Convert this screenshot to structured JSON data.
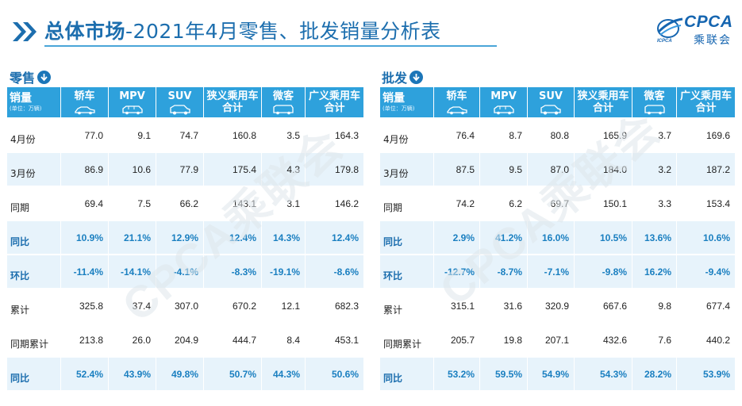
{
  "header": {
    "title_bold": "总体市场",
    "title_rest": "-2021年4月零售、批发销量分析表"
  },
  "logo": {
    "brand": "CPCA",
    "cn": "乘联会",
    "sub": "ICPCA"
  },
  "watermark": "CPCA乘联会",
  "tables": {
    "retail": {
      "label": "零售",
      "corner_title": "销量",
      "corner_unit": "(单位：万辆)",
      "columns": [
        "轿车",
        "MPV",
        "SUV",
        "狭义乘用车合计",
        "微客",
        "广义乘用车合计"
      ],
      "column_lines": [
        [
          "轿车"
        ],
        [
          "MPV"
        ],
        [
          "SUV"
        ],
        [
          "狭义乘用车",
          "合计"
        ],
        [
          "微客"
        ],
        [
          "广义乘用车",
          "合计"
        ]
      ],
      "rows": [
        {
          "label": "4月份",
          "values": [
            "77.0",
            "9.1",
            "74.7",
            "160.8",
            "3.5",
            "164.3"
          ]
        },
        {
          "label": "3月份",
          "values": [
            "86.9",
            "10.6",
            "77.9",
            "175.4",
            "4.3",
            "179.8"
          ]
        },
        {
          "label": "同期",
          "values": [
            "69.4",
            "7.5",
            "66.2",
            "143.1",
            "3.1",
            "146.2"
          ]
        },
        {
          "label": "同比",
          "values": [
            "10.9%",
            "21.1%",
            "12.9%",
            "12.4%",
            "14.3%",
            "12.4%"
          ]
        },
        {
          "label": "环比",
          "values": [
            "-11.4%",
            "-14.1%",
            "-4.1%",
            "-8.3%",
            "-19.1%",
            "-8.6%"
          ]
        },
        {
          "label": "累计",
          "values": [
            "325.8",
            "37.4",
            "307.0",
            "670.2",
            "12.1",
            "682.3"
          ]
        },
        {
          "label": "同期累计",
          "values": [
            "213.8",
            "26.0",
            "204.9",
            "444.7",
            "8.4",
            "453.1"
          ]
        },
        {
          "label": "同比",
          "values": [
            "52.4%",
            "43.9%",
            "49.8%",
            "50.7%",
            "44.3%",
            "50.6%"
          ]
        }
      ]
    },
    "wholesale": {
      "label": "批发",
      "corner_title": "销量",
      "corner_unit": "(单位：万辆)",
      "columns": [
        "轿车",
        "MPV",
        "SUV",
        "狭义乘用车合计",
        "微客",
        "广义乘用车合计"
      ],
      "column_lines": [
        [
          "轿车"
        ],
        [
          "MPV"
        ],
        [
          "SUV"
        ],
        [
          "狭义乘用车",
          "合计"
        ],
        [
          "微客"
        ],
        [
          "广义乘用车",
          "合计"
        ]
      ],
      "rows": [
        {
          "label": "4月份",
          "values": [
            "76.4",
            "8.7",
            "80.8",
            "165.9",
            "3.7",
            "169.6"
          ]
        },
        {
          "label": "3月份",
          "values": [
            "87.5",
            "9.5",
            "87.0",
            "184.0",
            "3.2",
            "187.2"
          ]
        },
        {
          "label": "同期",
          "values": [
            "74.2",
            "6.2",
            "69.7",
            "150.1",
            "3.3",
            "153.4"
          ]
        },
        {
          "label": "同比",
          "values": [
            "2.9%",
            "41.2%",
            "16.0%",
            "10.5%",
            "13.6%",
            "10.6%"
          ]
        },
        {
          "label": "环比",
          "values": [
            "-12.7%",
            "-8.7%",
            "-7.1%",
            "-9.8%",
            "16.2%",
            "-9.4%"
          ]
        },
        {
          "label": "累计",
          "values": [
            "315.1",
            "31.6",
            "320.9",
            "667.6",
            "9.8",
            "677.4"
          ]
        },
        {
          "label": "同期累计",
          "values": [
            "205.7",
            "19.8",
            "207.1",
            "432.6",
            "7.6",
            "440.2"
          ]
        },
        {
          "label": "同比",
          "values": [
            "53.2%",
            "59.5%",
            "54.9%",
            "54.3%",
            "28.2%",
            "53.9%"
          ]
        }
      ]
    }
  },
  "colors": {
    "accent": "#1c6eae",
    "header_fill": "#2ea1dc",
    "highlight_row": "#e7f3fb"
  },
  "icons": [
    "double-chevron-icon",
    "down-arrow-circle-icon",
    "sedan-icon",
    "mpv-icon",
    "suv-icon",
    "car-icon",
    "microvan-icon"
  ]
}
